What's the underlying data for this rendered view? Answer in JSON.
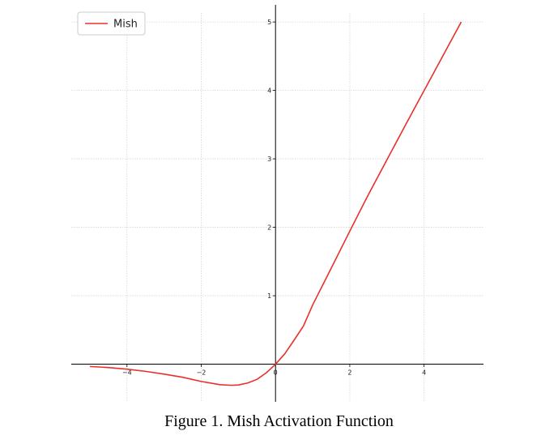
{
  "caption": "Figure 1.  Mish Activation Function",
  "chart_data": {
    "type": "line",
    "title": "",
    "xlabel": "",
    "ylabel": "",
    "xlim": [
      -5.5,
      5.6
    ],
    "ylim": [
      -0.55,
      5.25
    ],
    "xticks": [
      -4,
      -2,
      0,
      2,
      4
    ],
    "xtick_labels": [
      "−4",
      "−2",
      "0",
      "2",
      "4"
    ],
    "yticks": [
      1,
      2,
      3,
      4,
      5
    ],
    "ytick_labels": [
      "1",
      "2",
      "3",
      "4",
      "5"
    ],
    "grid": true,
    "legend": {
      "position": "top-left",
      "entries": [
        "Mish"
      ]
    },
    "series": [
      {
        "name": "Mish",
        "color": "#e8302a",
        "x": [
          -5.0,
          -4.5,
          -4.0,
          -3.5,
          -3.0,
          -2.5,
          -2.0,
          -1.5,
          -1.2,
          -1.0,
          -0.75,
          -0.5,
          -0.25,
          0.0,
          0.25,
          0.5,
          0.75,
          1.0,
          1.5,
          2.0,
          2.5,
          3.0,
          3.5,
          4.0,
          4.5,
          5.0
        ],
        "y": [
          -0.0336,
          -0.0497,
          -0.0726,
          -0.1048,
          -0.1456,
          -0.1915,
          -0.2525,
          -0.2997,
          -0.3088,
          -0.3034,
          -0.2746,
          -0.2222,
          -0.1272,
          0.0,
          0.152,
          0.351,
          0.5559,
          0.8651,
          1.4031,
          1.944,
          2.4777,
          2.9865,
          3.4953,
          3.9974,
          4.4988,
          4.9995
        ]
      }
    ]
  }
}
